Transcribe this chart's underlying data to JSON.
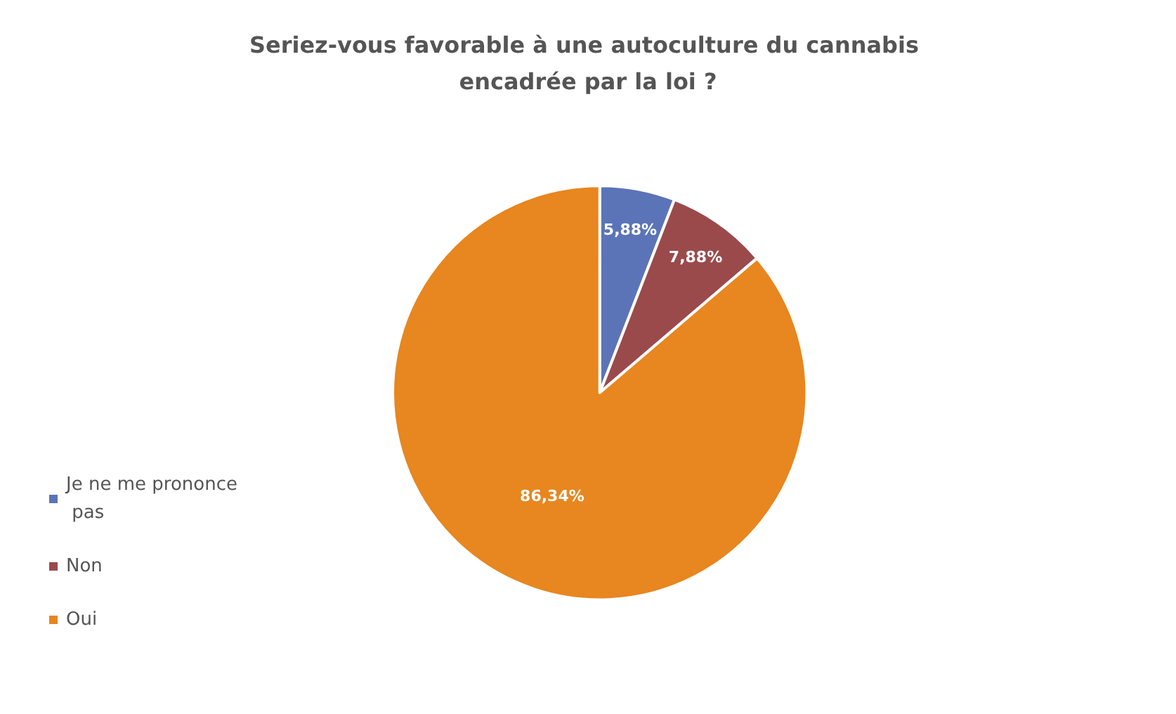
{
  "chart_data": {
    "type": "pie",
    "title": "Seriez-vous favorable à une autoculture du cannabis encadrée par la loi ?",
    "categories": [
      "Je ne me prononce pas",
      "Non",
      "Oui"
    ],
    "values": [
      5.88,
      7.88,
      86.34
    ],
    "colors": [
      "#5b74b8",
      "#9b4a4c",
      "#e8861f"
    ],
    "value_labels": [
      "5,88%",
      "7,88%",
      "86,34%"
    ],
    "legend": "left"
  }
}
